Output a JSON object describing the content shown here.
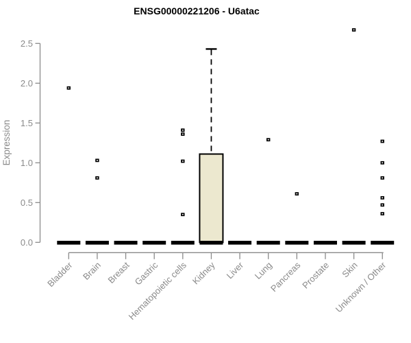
{
  "chart_data": {
    "type": "boxplot",
    "title": "ENSG00000221206 - U6atac",
    "ylabel": "Expression",
    "xlabel": "",
    "ylim": [
      0,
      2.5
    ],
    "yticks": [
      "0.0",
      "0.5",
      "1.0",
      "1.5",
      "2.0",
      "2.5"
    ],
    "legend": "none",
    "grid": false,
    "categories": [
      {
        "label": "Bladder",
        "median": 0,
        "points": [
          1.94
        ]
      },
      {
        "label": "Brain",
        "median": 0,
        "points": [
          1.03,
          0.81
        ]
      },
      {
        "label": "Breast",
        "median": 0,
        "points": []
      },
      {
        "label": "Gastric",
        "median": 0,
        "points": []
      },
      {
        "label": "Hematopoietic cells",
        "median": 0,
        "points": [
          1.41,
          1.36,
          1.02,
          0.35
        ]
      },
      {
        "label": "Kidney",
        "median": 0,
        "points": [],
        "box": {
          "q1": 0,
          "q3": 1.11,
          "whisker_low": 0,
          "whisker_high": 2.43
        }
      },
      {
        "label": "Liver",
        "median": 0,
        "points": []
      },
      {
        "label": "Lung",
        "median": 0,
        "points": [
          1.29
        ]
      },
      {
        "label": "Pancreas",
        "median": 0,
        "points": [
          0.61
        ]
      },
      {
        "label": "Prostate",
        "median": 0,
        "points": []
      },
      {
        "label": "Skin",
        "median": 0,
        "points": [
          2.67
        ]
      },
      {
        "label": "Unknown / Other",
        "median": 0,
        "points": [
          1.27,
          1.0,
          0.81,
          0.56,
          0.47,
          0.36
        ]
      }
    ],
    "colors": {
      "box_fill": "#ECE8CF",
      "box_stroke": "#000000",
      "median_bar": "#000000",
      "marker": "#000000",
      "marker_center": "#ffffff",
      "axis": "#8a8a8a",
      "tick_text": "#8a8a8a",
      "title_text": "#000000",
      "background": "#ffffff"
    }
  }
}
